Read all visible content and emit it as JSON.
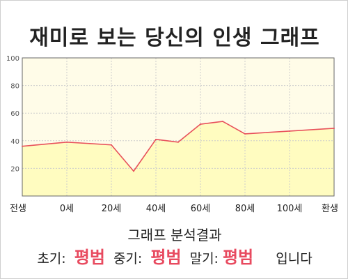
{
  "title": "재미로 보는 당신의 인생 그래프",
  "chart_data": {
    "type": "area",
    "x_categories": [
      "전생",
      "0세",
      "20세",
      "40세",
      "60세",
      "80세",
      "100세",
      "환생"
    ],
    "x": [
      -20,
      0,
      20,
      30,
      40,
      50,
      60,
      70,
      80,
      100,
      120
    ],
    "values": [
      36,
      39,
      37,
      18,
      41,
      39,
      52,
      54,
      45,
      47,
      49
    ],
    "ylim": [
      0,
      100
    ],
    "xlim": [
      -20,
      120
    ],
    "yticks": [
      20,
      40,
      60,
      80,
      100
    ],
    "grid": true,
    "colors": {
      "fill": "#fffcc0",
      "line": "#e8505b",
      "plot_bg": "#fffce8",
      "grid": "#cccccc"
    }
  },
  "summary": {
    "heading": "그래프 분석결과",
    "early_label": "초기:",
    "early_value": "평범",
    "mid_label": "중기:",
    "mid_value": "평범",
    "late_label": "말기:",
    "late_value": "평범",
    "ending": "입니다"
  }
}
